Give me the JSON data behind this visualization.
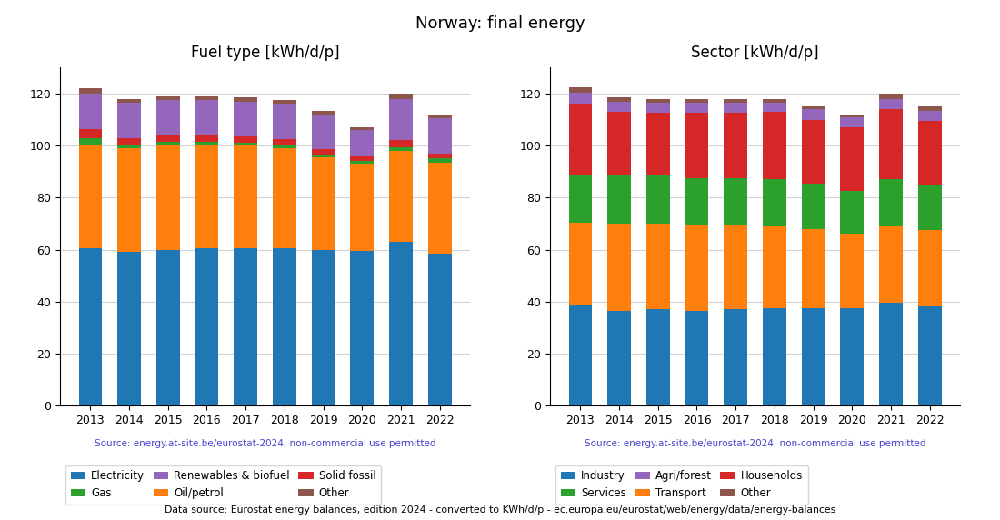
{
  "title": "Norway: final energy",
  "years": [
    2013,
    2014,
    2015,
    2016,
    2017,
    2018,
    2019,
    2020,
    2021,
    2022
  ],
  "fuel_title": "Fuel type [kWh/d/p]",
  "sector_title": "Sector [kWh/d/p]",
  "fuel_order": [
    "Electricity",
    "Oil/petrol",
    "Gas",
    "Solid fossil",
    "Renewables & biofuel",
    "Other"
  ],
  "fuel_data": {
    "Electricity": [
      60.5,
      59.0,
      60.0,
      60.5,
      60.5,
      60.5,
      60.0,
      59.5,
      63.0,
      58.5
    ],
    "Oil/petrol": [
      40.0,
      40.0,
      40.0,
      39.5,
      39.5,
      38.5,
      35.5,
      33.5,
      35.0,
      35.0
    ],
    "Gas": [
      2.5,
      1.5,
      1.5,
      1.5,
      1.0,
      1.0,
      1.0,
      1.0,
      1.5,
      1.5
    ],
    "Solid fossil": [
      3.5,
      2.5,
      2.5,
      2.5,
      2.5,
      2.5,
      2.0,
      2.0,
      2.5,
      2.0
    ],
    "Renewables & biofuel": [
      13.5,
      13.5,
      13.5,
      13.5,
      13.5,
      13.5,
      13.5,
      10.0,
      16.0,
      13.5
    ],
    "Other": [
      2.0,
      1.5,
      1.5,
      1.5,
      1.5,
      1.5,
      1.5,
      1.0,
      2.0,
      1.5
    ]
  },
  "fuel_colors": {
    "Electricity": "#1f77b4",
    "Oil/petrol": "#ff7f0e",
    "Gas": "#2ca02c",
    "Solid fossil": "#d62728",
    "Renewables & biofuel": "#9467bd",
    "Other": "#8c564b"
  },
  "fuel_legend_order": [
    "Electricity",
    "Gas",
    "Renewables & biofuel",
    "Oil/petrol",
    "Solid fossil",
    "Other"
  ],
  "sector_order": [
    "Industry",
    "Transport",
    "Services",
    "Households",
    "Agri/forest",
    "Other"
  ],
  "sector_data": {
    "Industry": [
      38.5,
      36.5,
      37.0,
      36.5,
      37.0,
      37.5,
      37.5,
      37.5,
      39.5,
      38.0
    ],
    "Transport": [
      32.0,
      33.5,
      33.0,
      33.0,
      32.5,
      31.5,
      30.5,
      28.5,
      29.5,
      29.5
    ],
    "Services": [
      18.5,
      18.5,
      18.5,
      18.0,
      18.0,
      18.0,
      17.5,
      16.5,
      18.0,
      17.5
    ],
    "Households": [
      27.0,
      24.5,
      24.0,
      25.0,
      25.0,
      26.0,
      24.5,
      24.5,
      27.0,
      24.5
    ],
    "Agri/forest": [
      4.5,
      4.0,
      4.0,
      4.0,
      4.0,
      3.5,
      4.0,
      4.0,
      4.0,
      4.0
    ],
    "Other": [
      2.0,
      1.5,
      1.5,
      1.5,
      1.5,
      1.5,
      1.0,
      1.0,
      2.0,
      1.5
    ]
  },
  "sector_colors": {
    "Industry": "#1f77b4",
    "Transport": "#ff7f0e",
    "Services": "#2ca02c",
    "Households": "#d62728",
    "Agri/forest": "#9467bd",
    "Other": "#8c564b"
  },
  "sector_legend_order": [
    "Industry",
    "Services",
    "Agri/forest",
    "Transport",
    "Households",
    "Other"
  ],
  "source_text": "Source: energy.at-site.be/eurostat-2024, non-commercial use permitted",
  "source_color": "#4444cc",
  "footnote": "Data source: Eurostat energy balances, edition 2024 - converted to KWh/d/p - ec.europa.eu/eurostat/web/energy/data/energy-balances",
  "ylim": [
    0,
    130
  ],
  "yticks": [
    0,
    20,
    40,
    60,
    80,
    100,
    120
  ]
}
